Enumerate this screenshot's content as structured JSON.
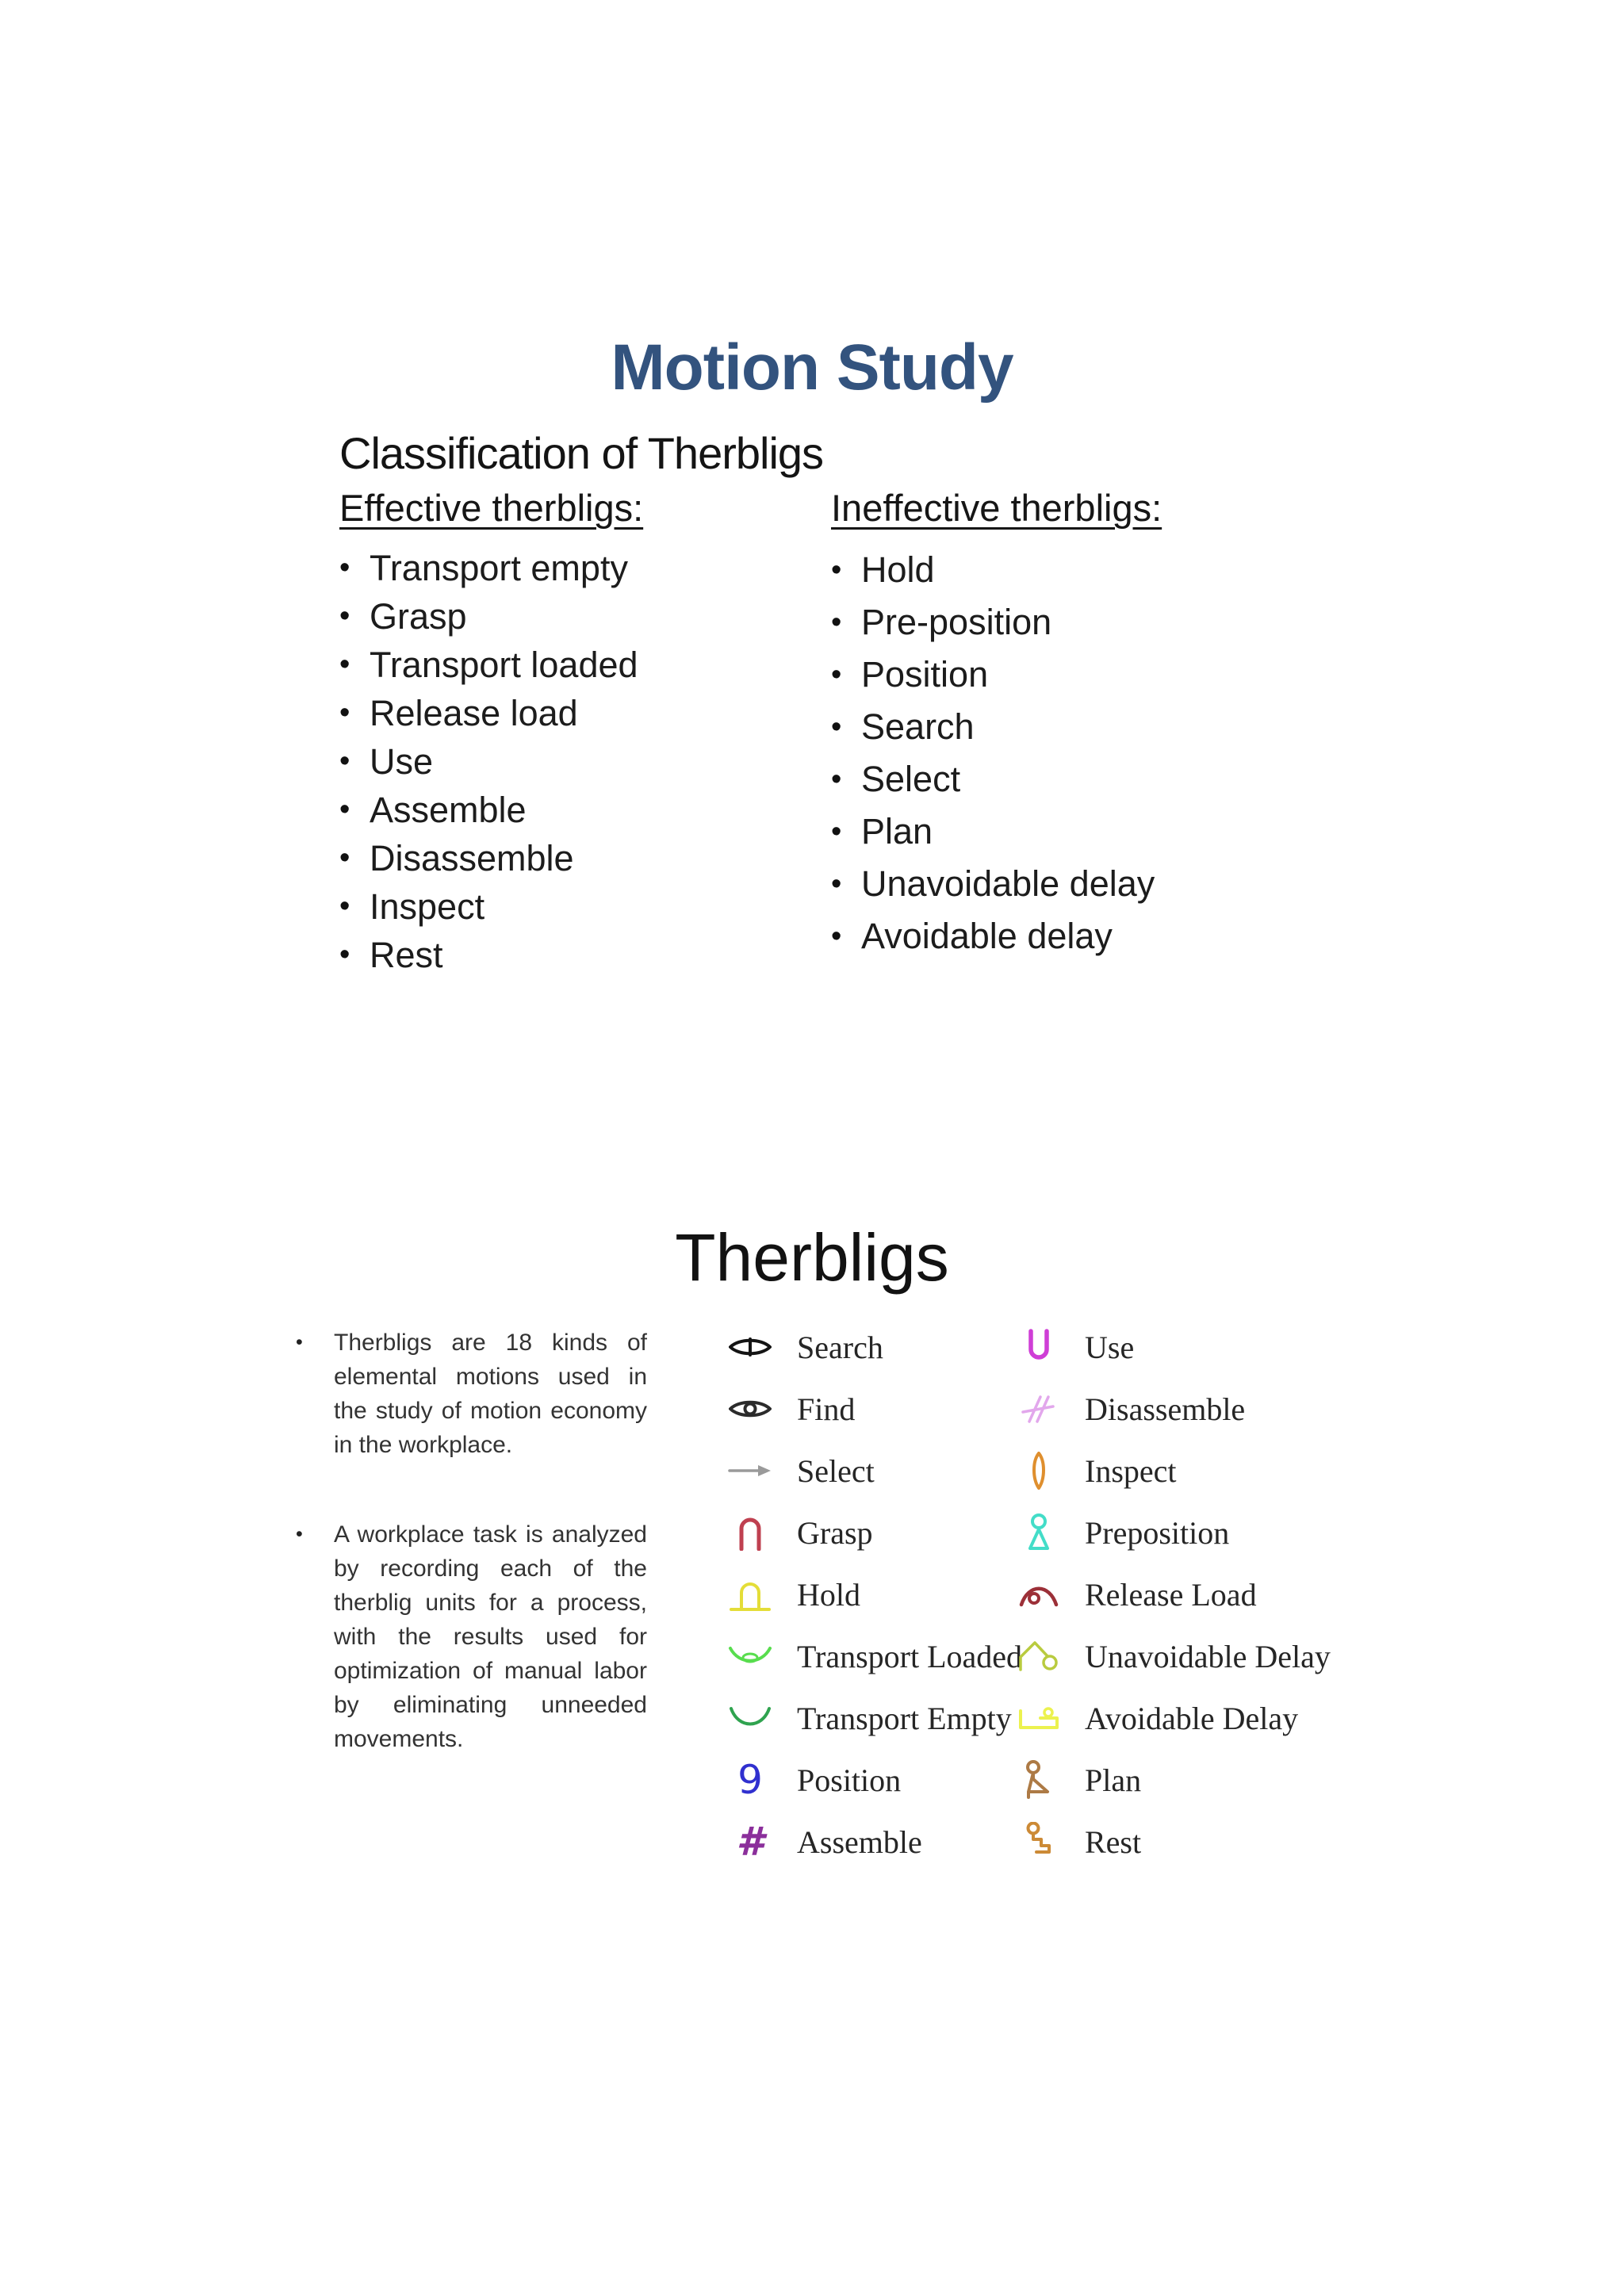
{
  "slide1": {
    "title": "Motion Study",
    "title_color": "#33537e",
    "subtitle": "Classification of Therbligs",
    "effective": {
      "heading": "Effective therbligs:",
      "items": [
        "Transport empty",
        "Grasp",
        "Transport loaded",
        "Release load",
        "Use",
        "Assemble",
        "Disassemble",
        "Inspect",
        "Rest"
      ]
    },
    "ineffective": {
      "heading": "Ineffective therbligs:",
      "items": [
        "Hold",
        "Pre-position",
        "Position",
        "Search",
        "Select",
        "Plan",
        "Unavoidable delay",
        "Avoidable delay"
      ]
    }
  },
  "slide2": {
    "title": "Therbligs",
    "bullets": [
      "Therbligs are 18 kinds of elemental motions used in the study of motion economy in the workplace.",
      "A workplace task is analyzed by recording each of the therblig units for a process, with the results used for optimization of manual labor by eliminating unneeded movements."
    ],
    "legend_left": [
      {
        "icon": "search-eye",
        "label": "Search",
        "color": "#141414"
      },
      {
        "icon": "find-eye",
        "label": "Find",
        "color": "#2b2b2b"
      },
      {
        "icon": "select-arrow",
        "label": "Select",
        "color": "#9a9a9a"
      },
      {
        "icon": "grasp",
        "label": "Grasp",
        "color": "#bf4050"
      },
      {
        "icon": "hold",
        "label": "Hold",
        "color": "#e4dd38"
      },
      {
        "icon": "transport-loaded",
        "label": "Transport Loaded",
        "color": "#58dd4e"
      },
      {
        "icon": "transport-empty",
        "label": "Transport Empty",
        "color": "#2fa34f"
      },
      {
        "icon": "position",
        "label": "Position",
        "color": "#3030cf"
      },
      {
        "icon": "assemble",
        "label": "Assemble",
        "color": "#8b2f9b"
      }
    ],
    "legend_right": [
      {
        "icon": "use",
        "label": "Use",
        "color": "#cf3ed6"
      },
      {
        "icon": "disassemble",
        "label": "Disassemble",
        "color": "#e2a7ec"
      },
      {
        "icon": "inspect",
        "label": "Inspect",
        "color": "#df8f2e"
      },
      {
        "icon": "preposition",
        "label": "Preposition",
        "color": "#43ddc8"
      },
      {
        "icon": "release-load",
        "label": "Release Load",
        "color": "#9c3038"
      },
      {
        "icon": "unavoidable-delay",
        "label": "Unavoidable Delay",
        "color": "#b9cb3f"
      },
      {
        "icon": "avoidable-delay",
        "label": "Avoidable Delay",
        "color": "#ecf24f"
      },
      {
        "icon": "plan",
        "label": "Plan",
        "color": "#ad7a45"
      },
      {
        "icon": "rest",
        "label": "Rest",
        "color": "#cc8a36"
      }
    ]
  }
}
